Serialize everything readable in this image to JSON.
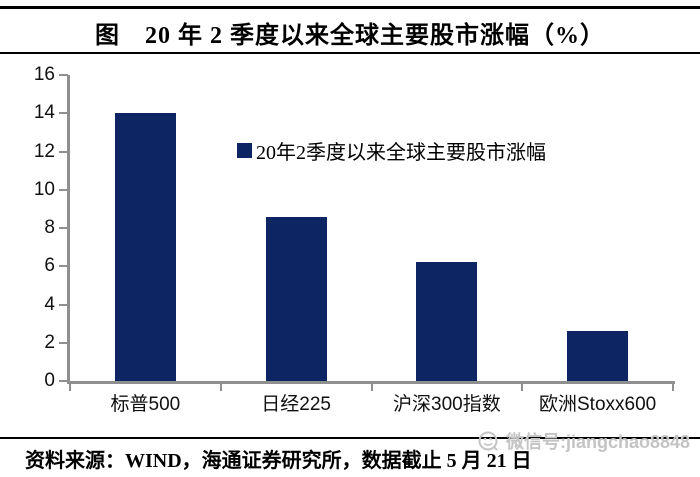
{
  "title": "图　20 年 2 季度以来全球主要股市涨幅（%）",
  "legend": {
    "label": "20年2季度以来全球主要股市涨幅",
    "marker_color": "#0d2562"
  },
  "footer": {
    "source": "资料来源：WIND，海通证券研究所，数据截止 5 月 21 日"
  },
  "watermark": {
    "icon": "wechat-icon",
    "text": "微信号:jiangchao8848",
    "color": "#c4c4c4"
  },
  "chart_data": {
    "type": "bar",
    "title": "20 年 2 季度以来全球主要股市涨幅（%）",
    "categories": [
      "标普500",
      "日经225",
      "沪深300指数",
      "欧洲Stoxx600"
    ],
    "values": [
      14.0,
      8.6,
      6.2,
      2.6
    ],
    "series_name": "20年2季度以来全球主要股市涨幅",
    "xlabel": "",
    "ylabel": "",
    "ylim": [
      0,
      16
    ],
    "yticks": [
      0,
      2,
      4,
      6,
      8,
      10,
      12,
      14,
      16
    ],
    "grid": false,
    "legend_position": "inside-upper-center",
    "bar_color": "#0d2562",
    "axis_color": "#8f8f8f"
  }
}
